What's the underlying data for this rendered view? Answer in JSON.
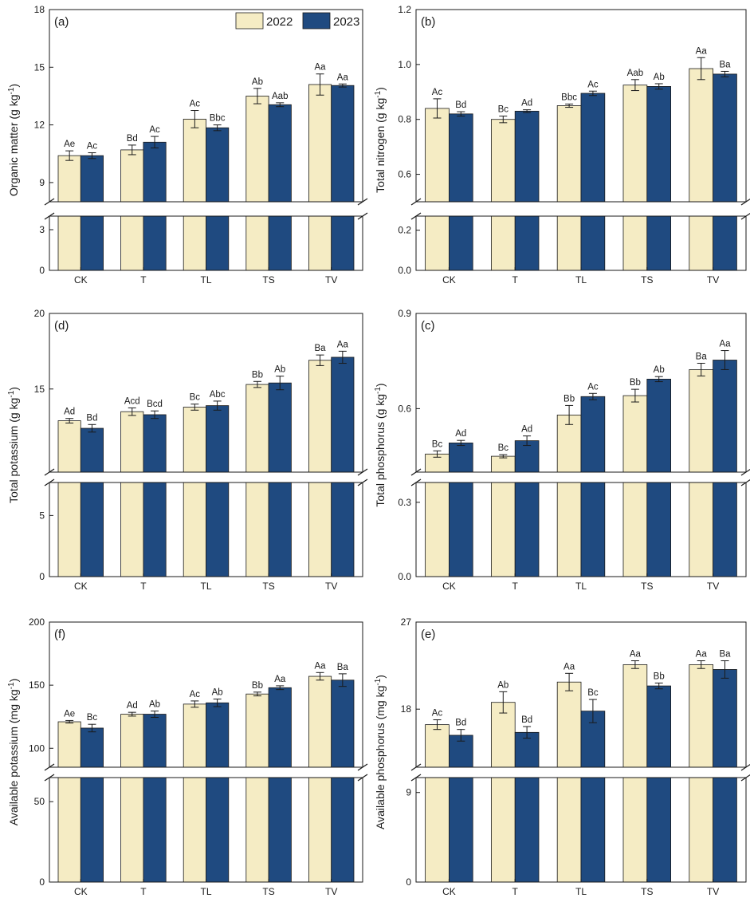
{
  "colors": {
    "y2022": "#f5ecc4",
    "y2023": "#1f4a80",
    "stroke": "#1a1a1a"
  },
  "legend": {
    "series": [
      "2022",
      "2023"
    ]
  },
  "chart_data": [
    {
      "type": "bar",
      "panel_label": "(a)",
      "ylabel": "Organic matter (g kg-1)",
      "ylabel_main": "Organic matter (g kg",
      "ylabel_sup": "-1",
      "ylabel_tail": ")",
      "categories": [
        "CK",
        "T",
        "TL",
        "TS",
        "TV"
      ],
      "axis_break": {
        "lower_range": [
          0,
          4
        ],
        "upper_range": [
          8,
          18
        ]
      },
      "lower_ticks": [
        0,
        3
      ],
      "upper_ticks": [
        9,
        12,
        15,
        18
      ],
      "series": [
        {
          "name": "2022",
          "values": [
            10.4,
            10.7,
            12.3,
            13.5,
            14.1
          ],
          "errors": [
            0.25,
            0.25,
            0.45,
            0.4,
            0.55
          ],
          "labels": [
            "Ae",
            "Bd",
            "Ac",
            "Ab",
            "Aa"
          ]
        },
        {
          "name": "2023",
          "values": [
            10.4,
            11.1,
            11.85,
            13.05,
            14.05
          ],
          "errors": [
            0.15,
            0.3,
            0.15,
            0.1,
            0.08
          ],
          "labels": [
            "Ac",
            "Ac",
            "Bbc",
            "Aab",
            "Aa"
          ]
        }
      ]
    },
    {
      "type": "bar",
      "panel_label": "(b)",
      "ylabel": "Total nitrogen (g kg-1)",
      "ylabel_main": "Total nitrogen (g kg",
      "ylabel_sup": "-1",
      "ylabel_tail": ")",
      "categories": [
        "CK",
        "T",
        "TL",
        "TS",
        "TV"
      ],
      "axis_break": {
        "lower_range": [
          0,
          0.27
        ],
        "upper_range": [
          0.5,
          1.2
        ]
      },
      "lower_ticks": [
        0.0,
        0.2
      ],
      "upper_ticks": [
        0.6,
        0.8,
        1.0,
        1.2
      ],
      "series": [
        {
          "name": "2022",
          "values": [
            0.84,
            0.8,
            0.85,
            0.925,
            0.985
          ],
          "errors": [
            0.035,
            0.012,
            0.006,
            0.02,
            0.04
          ],
          "labels": [
            "Ac",
            "Bc",
            "Bbc",
            "Aab",
            "Aa"
          ]
        },
        {
          "name": "2023",
          "values": [
            0.82,
            0.83,
            0.895,
            0.92,
            0.965
          ],
          "errors": [
            0.008,
            0.005,
            0.008,
            0.01,
            0.01
          ],
          "labels": [
            "Bd",
            "Ad",
            "Ac",
            "Ab",
            "Ba"
          ]
        }
      ]
    },
    {
      "type": "bar",
      "panel_label": "(d)",
      "ylabel": "Total potassium (g kg-1)",
      "ylabel_main": "Total potassium (g kg",
      "ylabel_sup": "-1",
      "ylabel_tail": ")",
      "categories": [
        "CK",
        "T",
        "TL",
        "TS",
        "TV"
      ],
      "axis_break": {
        "lower_range": [
          0,
          7.7
        ],
        "upper_range": [
          9.5,
          20
        ]
      },
      "lower_ticks": [
        0,
        5
      ],
      "upper_ticks": [
        15,
        20
      ],
      "series": [
        {
          "name": "2022",
          "values": [
            12.9,
            13.5,
            13.8,
            15.3,
            16.9
          ],
          "errors": [
            0.15,
            0.25,
            0.2,
            0.2,
            0.35
          ],
          "labels": [
            "Ad",
            "Acd",
            "Bc",
            "Bb",
            "Ba"
          ]
        },
        {
          "name": "2023",
          "values": [
            12.4,
            13.3,
            13.9,
            15.4,
            17.1
          ],
          "errors": [
            0.25,
            0.25,
            0.3,
            0.45,
            0.4
          ],
          "labels": [
            "Bd",
            "Bcd",
            "Abc",
            "Ab",
            "Aa"
          ]
        }
      ]
    },
    {
      "type": "bar",
      "panel_label": "(c)",
      "ylabel": "Total phosphorus (g kg-1)",
      "ylabel_main": "Total phosphorus (g kg",
      "ylabel_sup": "-1",
      "ylabel_tail": ")",
      "categories": [
        "CK",
        "T",
        "TL",
        "TS",
        "TV"
      ],
      "axis_break": {
        "lower_range": [
          0,
          0.38
        ],
        "upper_range": [
          0.4,
          0.9
        ]
      },
      "lower_ticks": [
        0.0,
        0.3
      ],
      "upper_ticks": [
        0.6,
        0.9
      ],
      "series": [
        {
          "name": "2022",
          "values": [
            0.457,
            0.45,
            0.58,
            0.641,
            0.723
          ],
          "errors": [
            0.01,
            0.005,
            0.03,
            0.02,
            0.02
          ],
          "labels": [
            "Bc",
            "Bc",
            "Bb",
            "Bb",
            "Ba"
          ]
        },
        {
          "name": "2023",
          "values": [
            0.492,
            0.499,
            0.638,
            0.693,
            0.753
          ],
          "errors": [
            0.008,
            0.015,
            0.01,
            0.008,
            0.03
          ],
          "labels": [
            "Ad",
            "Ad",
            "Ac",
            "Ab",
            "Aa"
          ]
        }
      ]
    },
    {
      "type": "bar",
      "panel_label": "(f)",
      "ylabel": "Available potassium (mg kg-1)",
      "ylabel_main": "Available potassium (mg kg",
      "ylabel_sup": "-1",
      "ylabel_tail": ")",
      "categories": [
        "CK",
        "T",
        "TL",
        "TS",
        "TV"
      ],
      "axis_break": {
        "lower_range": [
          0,
          65
        ],
        "upper_range": [
          85,
          200
        ]
      },
      "lower_ticks": [
        0,
        50
      ],
      "upper_ticks": [
        100,
        150,
        200
      ],
      "series": [
        {
          "name": "2022",
          "values": [
            121,
            127,
            135,
            143,
            157
          ],
          "errors": [
            1,
            1.5,
            2.5,
            1.5,
            3
          ],
          "labels": [
            "Ae",
            "Ad",
            "Ac",
            "Bb",
            "Aa"
          ]
        },
        {
          "name": "2023",
          "values": [
            116,
            127,
            136,
            148,
            154
          ],
          "errors": [
            3,
            2.5,
            3,
            1.5,
            5
          ],
          "labels": [
            "Bc",
            "Ab",
            "Ab",
            "Aa",
            "Ba"
          ]
        }
      ]
    },
    {
      "type": "bar",
      "panel_label": "(e)",
      "ylabel": "Available phosphorus (mg kg-1)",
      "ylabel_main": "Available phosphorus (mg kg",
      "ylabel_sup": "-1",
      "ylabel_tail": ")",
      "categories": [
        "CK",
        "T",
        "TL",
        "TS",
        "TV"
      ],
      "axis_break": {
        "lower_range": [
          0,
          10.5
        ],
        "upper_range": [
          12,
          27
        ]
      },
      "lower_ticks": [
        0,
        9
      ],
      "upper_ticks": [
        18,
        27
      ],
      "series": [
        {
          "name": "2022",
          "values": [
            16.4,
            18.7,
            20.8,
            22.6,
            22.6
          ],
          "errors": [
            0.5,
            1.1,
            0.9,
            0.4,
            0.4
          ],
          "labels": [
            "Ac",
            "Ab",
            "Aa",
            "Aa",
            "Aa"
          ]
        },
        {
          "name": "2023",
          "values": [
            15.3,
            15.6,
            17.8,
            20.4,
            22.1
          ],
          "errors": [
            0.6,
            0.6,
            1.2,
            0.3,
            0.9
          ],
          "labels": [
            "Bd",
            "Bd",
            "Bc",
            "Bb",
            "Ba"
          ]
        }
      ]
    }
  ]
}
